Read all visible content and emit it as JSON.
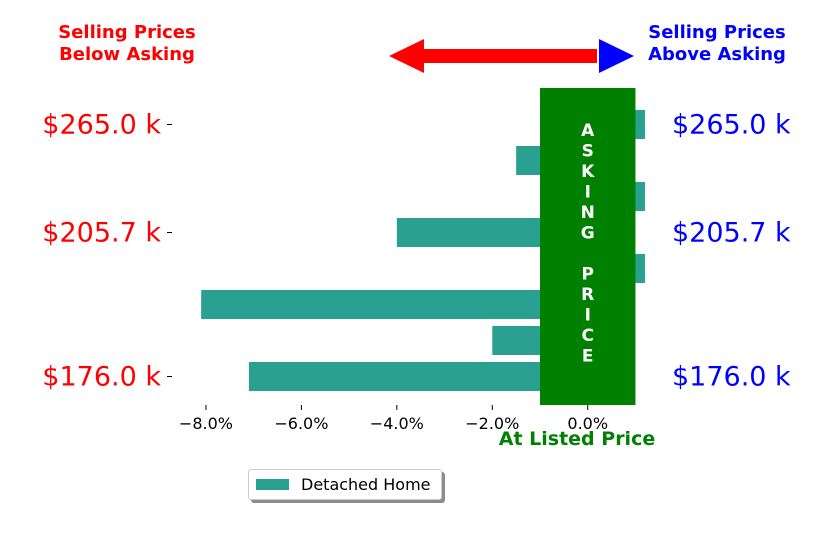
{
  "colors": {
    "bar": "#2aa090",
    "asking_band": "#008000",
    "below": "#ff0000",
    "above": "#0000ff"
  },
  "header": {
    "below_line1": "Selling Prices",
    "below_line2": "Below Asking",
    "above_line1": "Selling Prices",
    "above_line2": "Above Asking"
  },
  "asking_band": {
    "letters": [
      "A",
      "S",
      "K",
      "I",
      "N",
      "G",
      "",
      "P",
      "R",
      "I",
      "C",
      "E"
    ],
    "xlabel": "At Listed Price"
  },
  "chart_data": {
    "type": "bar",
    "orientation": "horizontal",
    "series": [
      {
        "name": "Detached Home",
        "values": [
          1.2,
          -1.5,
          1.2,
          -4.0,
          1.2,
          -8.1,
          -2.0,
          -7.1
        ]
      }
    ],
    "xlim": [
      -8.9,
      1.2
    ],
    "xticks": [
      -8.0,
      -6.0,
      -4.0,
      -2.0,
      0.0
    ],
    "xtick_labels": [
      "−8.0%",
      "−6.0%",
      "−4.0%",
      "−2.0%",
      "0.0%"
    ],
    "ytick_labels": [
      "$265.0 k",
      "$205.7 k",
      "$176.0 k"
    ],
    "ytick_rows": [
      0,
      3,
      7
    ],
    "asking_band_range": [
      -1.0,
      1.0
    ],
    "legend_placement": "bottom-center"
  }
}
